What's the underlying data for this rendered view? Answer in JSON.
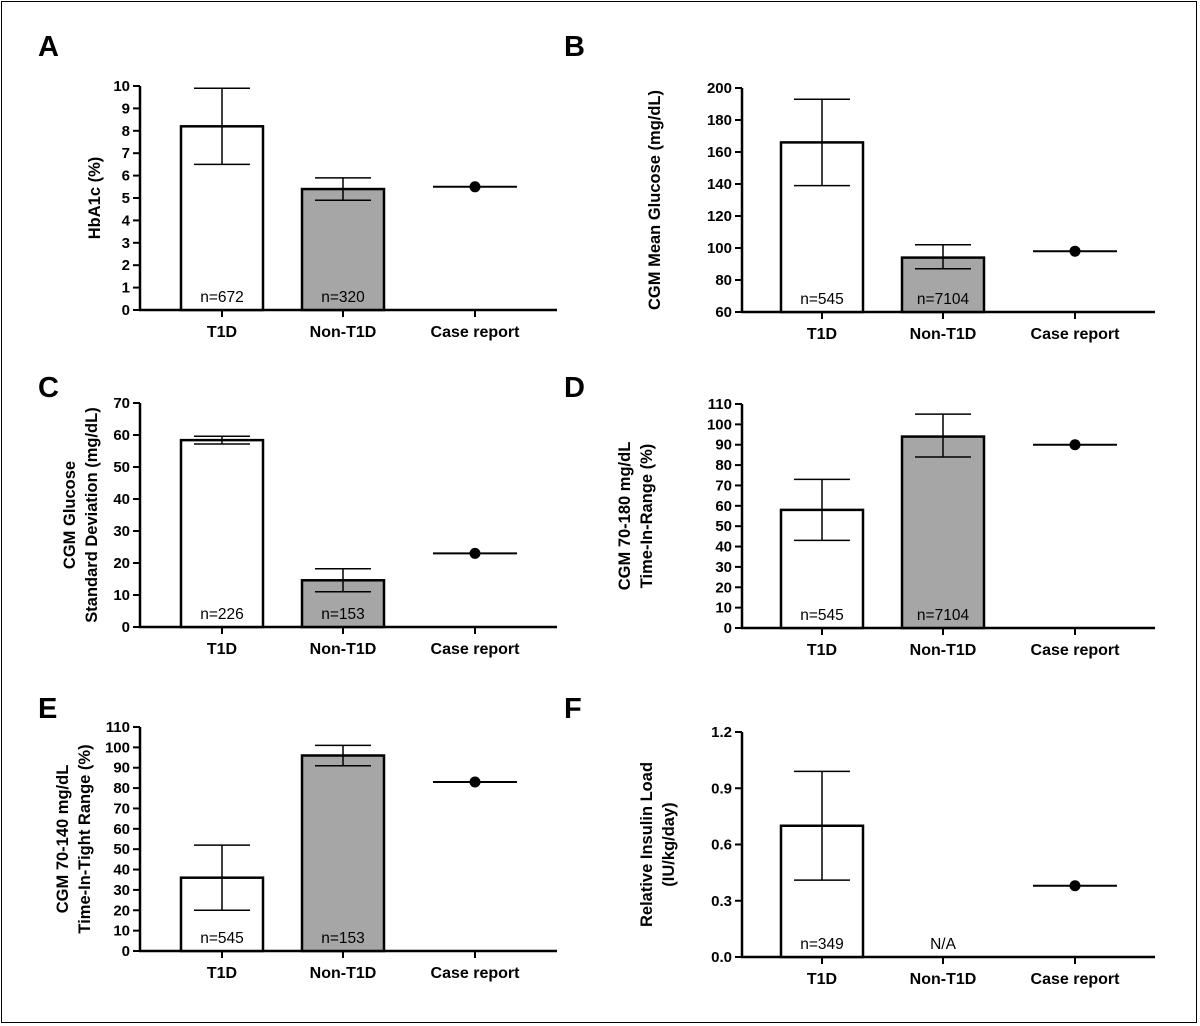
{
  "colors": {
    "t1d_bar": "#ffffff",
    "non_t1d_bar": "#a6a6a6",
    "stroke": "#000000",
    "case_point": "#000000"
  },
  "chart_data": [
    {
      "type": "bar",
      "panel": "A",
      "ylabel_lines": [
        "HbA1c  (%)"
      ],
      "categories": [
        "T1D",
        "Non-T1D",
        "Case report"
      ],
      "ylim": [
        0,
        10
      ],
      "yticks": [
        0,
        1,
        2,
        3,
        4,
        5,
        6,
        7,
        8,
        9,
        10
      ],
      "tick_labels": [
        "0",
        "1",
        "2",
        "3",
        "4",
        "5",
        "6",
        "7",
        "8",
        "9",
        "10"
      ],
      "bars": [
        {
          "category": "T1D",
          "mean": 8.2,
          "err_low": 6.5,
          "err_high": 9.9,
          "n_label": "n=672"
        },
        {
          "category": "Non-T1D",
          "mean": 5.4,
          "err_low": 4.9,
          "err_high": 5.9,
          "n_label": "n=320"
        }
      ],
      "case_report": 5.5
    },
    {
      "type": "bar",
      "panel": "B",
      "ylabel_lines": [
        "CGM Mean Glucose (mg/dL)"
      ],
      "categories": [
        "T1D",
        "Non-T1D",
        "Case report"
      ],
      "ylim": [
        60,
        200
      ],
      "yticks": [
        60,
        80,
        100,
        120,
        140,
        160,
        180,
        200
      ],
      "tick_labels": [
        "60",
        "80",
        "100",
        "120",
        "140",
        "160",
        "180",
        "200"
      ],
      "bars": [
        {
          "category": "T1D",
          "mean": 166,
          "err_low": 139,
          "err_high": 193,
          "n_label": "n=545"
        },
        {
          "category": "Non-T1D",
          "mean": 94,
          "err_low": 87,
          "err_high": 102,
          "n_label": "n=7104"
        }
      ],
      "case_report": 98
    },
    {
      "type": "bar",
      "panel": "C",
      "ylabel_lines": [
        "CGM Glucose",
        "Standard Deviation (mg/dL)"
      ],
      "categories": [
        "T1D",
        "Non-T1D",
        "Case report"
      ],
      "ylim": [
        0,
        70
      ],
      "yticks": [
        0,
        10,
        20,
        30,
        40,
        50,
        60,
        70
      ],
      "tick_labels": [
        "0",
        "10",
        "20",
        "30",
        "40",
        "50",
        "60",
        "70"
      ],
      "bars": [
        {
          "category": "T1D",
          "mean": 58.4,
          "err_low": 57.2,
          "err_high": 59.6,
          "n_label": "n=226"
        },
        {
          "category": "Non-T1D",
          "mean": 14.6,
          "err_low": 11.0,
          "err_high": 18.2,
          "n_label": "n=153"
        }
      ],
      "case_report": 23
    },
    {
      "type": "bar",
      "panel": "D",
      "ylabel_lines": [
        "CGM 70-180 mg/dL",
        "Time-In-Range (%)"
      ],
      "categories": [
        "T1D",
        "Non-T1D",
        "Case report"
      ],
      "ylim": [
        0,
        110
      ],
      "yticks": [
        0,
        10,
        20,
        30,
        40,
        50,
        60,
        70,
        80,
        90,
        100,
        110
      ],
      "tick_labels": [
        "0",
        "10",
        "20",
        "30",
        "40",
        "50",
        "60",
        "70",
        "80",
        "90",
        "100",
        "110"
      ],
      "bars": [
        {
          "category": "T1D",
          "mean": 58,
          "err_low": 43,
          "err_high": 73,
          "n_label": "n=545"
        },
        {
          "category": "Non-T1D",
          "mean": 94,
          "err_low": 84,
          "err_high": 105,
          "n_label": "n=7104"
        }
      ],
      "case_report": 90
    },
    {
      "type": "bar",
      "panel": "E",
      "ylabel_lines": [
        "CGM 70-140 mg/dL",
        "Time-In-Tight Range (%)"
      ],
      "categories": [
        "T1D",
        "Non-T1D",
        "Case report"
      ],
      "ylim": [
        0,
        110
      ],
      "yticks": [
        0,
        10,
        20,
        30,
        40,
        50,
        60,
        70,
        80,
        90,
        100,
        110
      ],
      "tick_labels": [
        "0",
        "10",
        "20",
        "30",
        "40",
        "50",
        "60",
        "70",
        "80",
        "90",
        "100",
        "110"
      ],
      "bars": [
        {
          "category": "T1D",
          "mean": 36,
          "err_low": 20,
          "err_high": 52,
          "n_label": "n=545"
        },
        {
          "category": "Non-T1D",
          "mean": 96,
          "err_low": 91,
          "err_high": 101,
          "n_label": "n=153"
        }
      ],
      "case_report": 83
    },
    {
      "type": "bar",
      "panel": "F",
      "ylabel_lines": [
        "Relative Insulin Load",
        "(IU/kg/day)"
      ],
      "categories": [
        "T1D",
        "Non-T1D",
        "Case report"
      ],
      "ylim": [
        0,
        1.2
      ],
      "yticks": [
        0,
        0.3,
        0.6,
        0.9,
        1.2
      ],
      "tick_labels": [
        "0.0",
        "0.3",
        "0.6",
        "0.9",
        "1.2"
      ],
      "bars": [
        {
          "category": "T1D",
          "mean": 0.7,
          "err_low": 0.41,
          "err_high": 0.99,
          "n_label": "n=349"
        },
        {
          "category": "Non-T1D",
          "mean": null,
          "err_low": null,
          "err_high": null,
          "n_label": "N/A"
        }
      ],
      "case_report": 0.38
    }
  ]
}
